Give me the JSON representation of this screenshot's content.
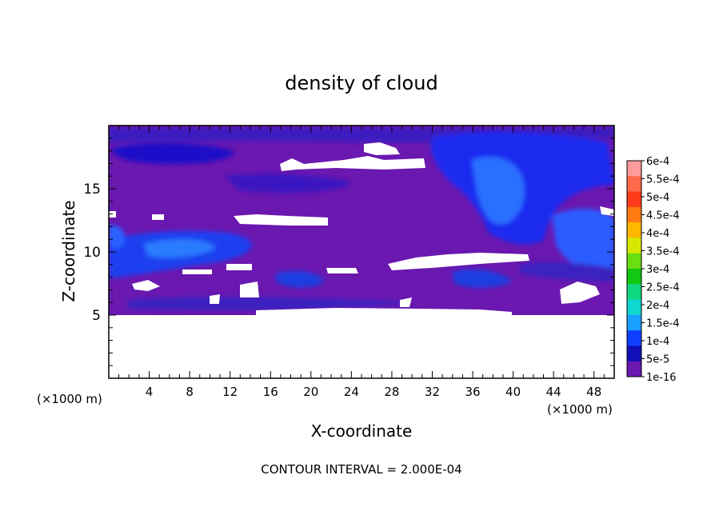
{
  "chart_data": {
    "type": "heatmap",
    "title": "density of cloud",
    "xlabel": "X-coordinate",
    "ylabel": "Z-coordinate",
    "x_unit": "(×1000 m)",
    "x_unit_right": "(×1000 m)",
    "xlim": [
      0,
      50
    ],
    "ylim": [
      0,
      20
    ],
    "x_ticks": [
      4,
      8,
      12,
      16,
      20,
      24,
      28,
      32,
      36,
      40,
      44,
      48
    ],
    "y_ticks": [
      5,
      10,
      15
    ],
    "footer": "CONTOUR INTERVAL = 2.000E-04",
    "colorbar": {
      "labels": [
        "6e-4",
        "5.5e-4",
        "5e-4",
        "4.5e-4",
        "4e-4",
        "3.5e-4",
        "3e-4",
        "2.5e-4",
        "2e-4",
        "1.5e-4",
        "1e-4",
        "5e-5",
        "1e-16"
      ],
      "colors": [
        "#ff9a9a",
        "#ff6a4a",
        "#ff3a1a",
        "#ff7a10",
        "#ffb800",
        "#d8e800",
        "#6ade10",
        "#10c810",
        "#10d880",
        "#10d8d0",
        "#1aa0ff",
        "#1040ff",
        "#1010b8",
        "#6a18b0"
      ]
    },
    "background_value": "1e-16",
    "note": "no-data (white) region below z=5"
  }
}
